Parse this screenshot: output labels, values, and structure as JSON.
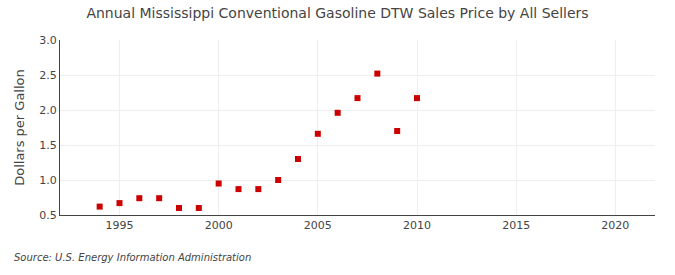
{
  "chart_data": {
    "type": "scatter",
    "title": "Annual Mississippi Conventional Gasoline DTW Sales Price by All Sellers",
    "ylabel": "Dollars per Gallon",
    "annotations": [
      "Source: U.S. Energy Information Administration"
    ],
    "x": [
      1994,
      1995,
      1996,
      1997,
      1998,
      1999,
      2000,
      2001,
      2002,
      2003,
      2004,
      2005,
      2006,
      2007,
      2008,
      2009,
      2010
    ],
    "values": [
      0.62,
      0.67,
      0.74,
      0.74,
      0.6,
      0.6,
      0.95,
      0.87,
      0.87,
      1.0,
      1.3,
      1.66,
      1.96,
      2.17,
      2.52,
      1.7,
      2.17
    ],
    "color": "#cc0000",
    "marker": "square",
    "xlim": [
      1992,
      2022
    ],
    "ylim": [
      0.5,
      3.0
    ],
    "xticks": [
      1995,
      2000,
      2005,
      2010,
      2015,
      2020
    ],
    "yticks": [
      0.5,
      {
        "value": 1.0,
        "label": "1.0"
      },
      1.5,
      {
        "value": 2.0,
        "label": "2.0"
      },
      2.5,
      {
        "value": 3.0,
        "label": "3.0"
      }
    ],
    "grid": true
  }
}
